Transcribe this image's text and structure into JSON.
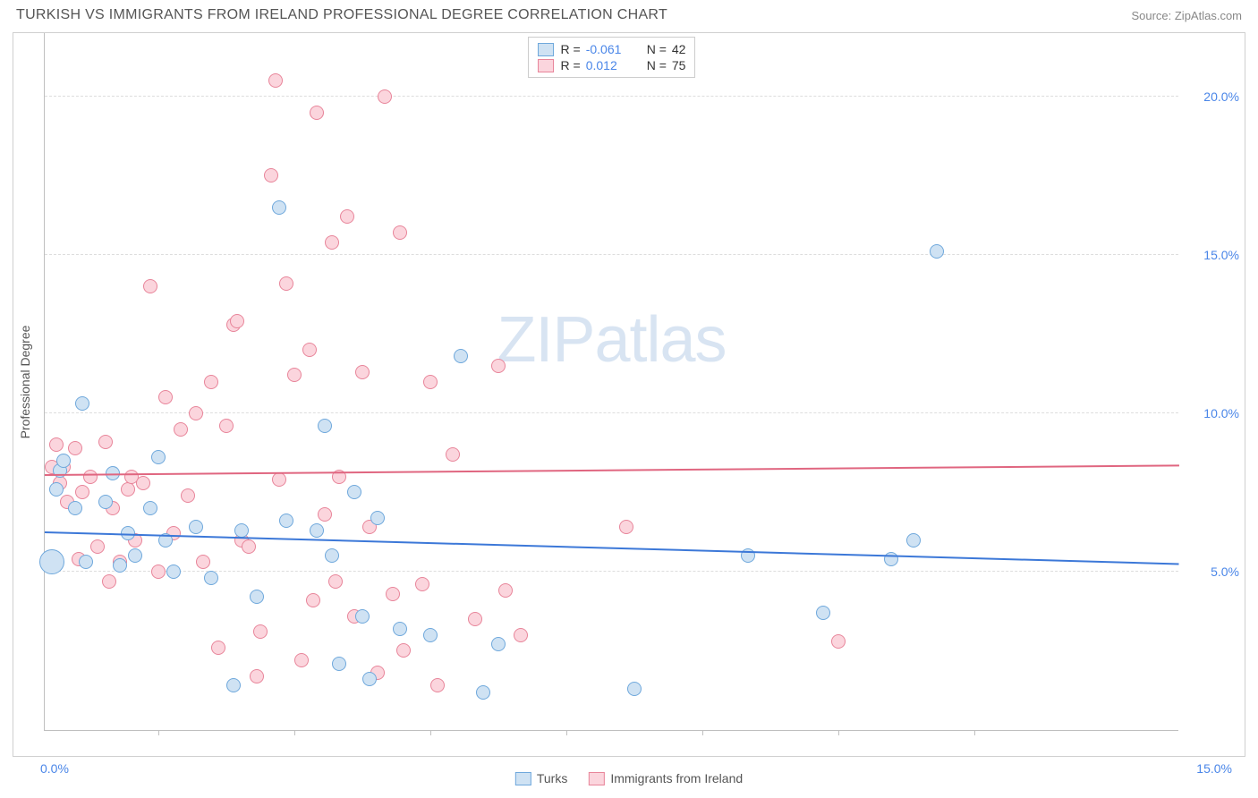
{
  "header": {
    "title": "TURKISH VS IMMIGRANTS FROM IRELAND PROFESSIONAL DEGREE CORRELATION CHART",
    "source": "Source: ZipAtlas.com"
  },
  "watermark": {
    "text_bold": "ZIP",
    "text_thin": "atlas"
  },
  "chart": {
    "type": "scatter",
    "y_axis_title": "Professional Degree",
    "xlim": [
      0,
      15
    ],
    "ylim": [
      0,
      22
    ],
    "x_tick_labels": {
      "min": "0.0%",
      "max": "15.0%"
    },
    "x_tick_positions_pct": [
      10,
      22,
      34,
      46,
      58,
      70,
      82
    ],
    "y_ticks": [
      {
        "value": 5,
        "label": "5.0%"
      },
      {
        "value": 10,
        "label": "10.0%"
      },
      {
        "value": 15,
        "label": "15.0%"
      },
      {
        "value": 20,
        "label": "20.0%"
      }
    ],
    "xaxis_label_color": "#4a86e8",
    "yaxis_label_color": "#4a86e8",
    "grid_color": "#dddddd",
    "background_color": "#ffffff",
    "marker_radius": 8,
    "marker_radius_large": 14,
    "marker_stroke_width": 1.5,
    "series": [
      {
        "name": "Turks",
        "fill_color": "#cfe2f3",
        "stroke_color": "#6fa8dc",
        "line_color": "#3c78d8",
        "trend": {
          "y_at_x0": 6.3,
          "y_at_x15": 5.3
        },
        "R": "-0.061",
        "N": "42",
        "points": [
          [
            0.1,
            5.3,
            14
          ],
          [
            0.15,
            7.6
          ],
          [
            0.2,
            8.2
          ],
          [
            0.25,
            8.5
          ],
          [
            0.4,
            7.0
          ],
          [
            0.5,
            10.3
          ],
          [
            0.55,
            5.3
          ],
          [
            0.8,
            7.2
          ],
          [
            0.9,
            8.1
          ],
          [
            1.0,
            5.2
          ],
          [
            1.1,
            6.2
          ],
          [
            1.2,
            5.5
          ],
          [
            1.4,
            7.0
          ],
          [
            1.5,
            8.6
          ],
          [
            1.6,
            6.0
          ],
          [
            1.7,
            5.0
          ],
          [
            2.0,
            6.4
          ],
          [
            2.2,
            4.8
          ],
          [
            2.5,
            1.4
          ],
          [
            2.6,
            6.3
          ],
          [
            2.8,
            4.2
          ],
          [
            3.1,
            16.5
          ],
          [
            3.2,
            6.6
          ],
          [
            3.6,
            6.3
          ],
          [
            3.7,
            9.6
          ],
          [
            3.8,
            5.5
          ],
          [
            3.9,
            2.1
          ],
          [
            4.1,
            7.5
          ],
          [
            4.2,
            3.6
          ],
          [
            4.3,
            1.6
          ],
          [
            4.4,
            6.7
          ],
          [
            4.7,
            3.2
          ],
          [
            5.1,
            3.0
          ],
          [
            5.5,
            11.8
          ],
          [
            5.8,
            1.2
          ],
          [
            6.0,
            2.7
          ],
          [
            7.8,
            1.3
          ],
          [
            9.3,
            5.5
          ],
          [
            10.3,
            3.7
          ],
          [
            11.2,
            5.4
          ],
          [
            11.5,
            6.0
          ],
          [
            11.8,
            15.1
          ]
        ]
      },
      {
        "name": "Immigrants from Ireland",
        "fill_color": "#fbd5dd",
        "stroke_color": "#e8859a",
        "line_color": "#e06680",
        "trend": {
          "y_at_x0": 8.1,
          "y_at_x15": 8.4
        },
        "R": "0.012",
        "N": "75",
        "points": [
          [
            0.1,
            8.3
          ],
          [
            0.15,
            9.0
          ],
          [
            0.2,
            7.8
          ],
          [
            0.25,
            8.3
          ],
          [
            0.3,
            7.2
          ],
          [
            0.4,
            8.9
          ],
          [
            0.45,
            5.4
          ],
          [
            0.5,
            7.5
          ],
          [
            0.6,
            8.0
          ],
          [
            0.7,
            5.8
          ],
          [
            0.8,
            9.1
          ],
          [
            0.85,
            4.7
          ],
          [
            0.9,
            7.0
          ],
          [
            1.0,
            5.3
          ],
          [
            1.1,
            7.6
          ],
          [
            1.15,
            8.0
          ],
          [
            1.2,
            6.0
          ],
          [
            1.3,
            7.8
          ],
          [
            1.4,
            14.0
          ],
          [
            1.5,
            5.0
          ],
          [
            1.6,
            10.5
          ],
          [
            1.7,
            6.2
          ],
          [
            1.8,
            9.5
          ],
          [
            1.9,
            7.4
          ],
          [
            2.0,
            10.0
          ],
          [
            2.1,
            5.3
          ],
          [
            2.2,
            11.0
          ],
          [
            2.3,
            2.6
          ],
          [
            2.4,
            9.6
          ],
          [
            2.5,
            12.8
          ],
          [
            2.55,
            12.9
          ],
          [
            2.6,
            6.0
          ],
          [
            2.7,
            5.8
          ],
          [
            2.8,
            1.7
          ],
          [
            2.85,
            3.1
          ],
          [
            3.0,
            17.5
          ],
          [
            3.05,
            20.5
          ],
          [
            3.1,
            7.9
          ],
          [
            3.2,
            14.1
          ],
          [
            3.3,
            11.2
          ],
          [
            3.4,
            2.2
          ],
          [
            3.5,
            12.0
          ],
          [
            3.55,
            4.1
          ],
          [
            3.6,
            19.5
          ],
          [
            3.7,
            6.8
          ],
          [
            3.8,
            15.4
          ],
          [
            3.85,
            4.7
          ],
          [
            3.9,
            8.0
          ],
          [
            4.0,
            16.2
          ],
          [
            4.1,
            3.6
          ],
          [
            4.2,
            11.3
          ],
          [
            4.3,
            6.4
          ],
          [
            4.4,
            1.8
          ],
          [
            4.5,
            20.0
          ],
          [
            4.6,
            4.3
          ],
          [
            4.7,
            15.7
          ],
          [
            4.75,
            2.5
          ],
          [
            5.0,
            4.6
          ],
          [
            5.1,
            11.0
          ],
          [
            5.2,
            1.4
          ],
          [
            5.4,
            8.7
          ],
          [
            5.7,
            3.5
          ],
          [
            6.0,
            11.5
          ],
          [
            6.1,
            4.4
          ],
          [
            6.3,
            3.0
          ],
          [
            7.7,
            6.4
          ],
          [
            10.5,
            2.8
          ]
        ]
      }
    ]
  },
  "bottom_legend": [
    {
      "label": "Turks",
      "fill": "#cfe2f3",
      "stroke": "#6fa8dc"
    },
    {
      "label": "Immigrants from Ireland",
      "fill": "#fbd5dd",
      "stroke": "#e8859a"
    }
  ]
}
